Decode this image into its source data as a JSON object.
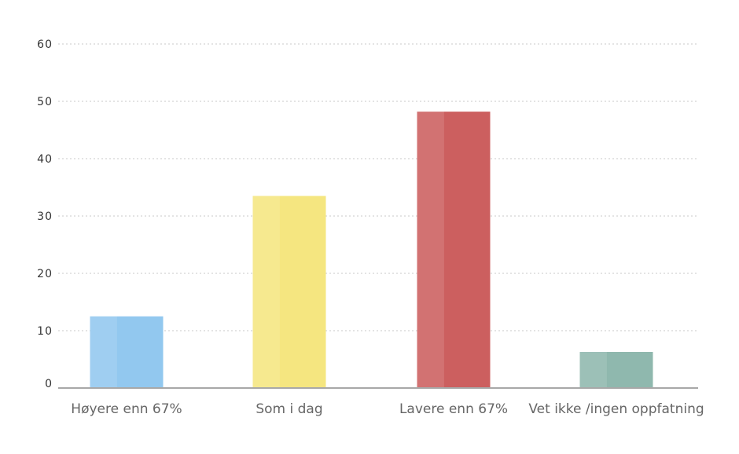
{
  "chart_data": {
    "type": "bar",
    "title": "",
    "xlabel": "",
    "ylabel": "",
    "categories": [
      "Høyere enn 67%",
      "Som i dag",
      "Lavere enn 67%",
      "Vet ikke /ingen oppfatning"
    ],
    "values": [
      12.5,
      33.5,
      48.2,
      6.3
    ],
    "colors": [
      "#92c8ef",
      "#f5e680",
      "#cc5f5f",
      "#8fb8ae"
    ],
    "ylim": [
      0,
      60
    ],
    "yticks": [
      0,
      10,
      20,
      30,
      40,
      50,
      60
    ],
    "grid": true,
    "legend": "none"
  }
}
